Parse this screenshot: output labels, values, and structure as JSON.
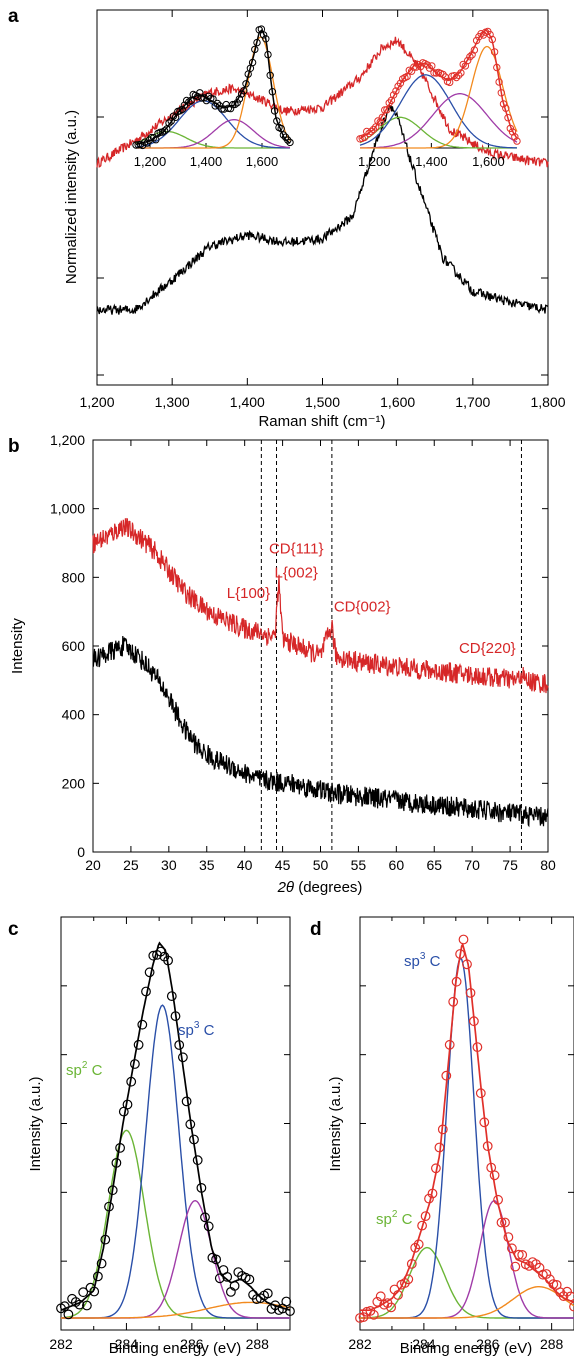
{
  "panels": {
    "a": {
      "letter": "a",
      "chart_data": {
        "type": "line",
        "xlabel": "Raman shift (cm⁻¹)",
        "ylabel": "Normalized intensity (a.u.)",
        "xlim": [
          1200,
          1800
        ],
        "xticks": [
          "1,200",
          "1,300",
          "1,400",
          "1,500",
          "1,600",
          "1,700",
          "1,800"
        ],
        "series": [
          {
            "color": "#d62728",
            "x": [
              1200,
              1250,
              1300,
              1350,
              1380,
              1420,
              1450,
              1500,
              1550,
              1580,
              1600,
              1630,
              1670,
              1720,
              1770,
              1800
            ],
            "y": [
              0.59,
              0.65,
              0.72,
              0.78,
              0.79,
              0.76,
              0.73,
              0.74,
              0.82,
              0.9,
              0.92,
              0.84,
              0.68,
              0.62,
              0.6,
              0.59
            ]
          },
          {
            "color": "#000000",
            "x": [
              1200,
              1250,
              1300,
              1350,
              1400,
              1450,
              1500,
              1540,
              1570,
              1590,
              1600,
              1620,
              1660,
              1700,
              1750,
              1800
            ],
            "y": [
              0.2,
              0.2,
              0.28,
              0.37,
              0.4,
              0.38,
              0.39,
              0.45,
              0.64,
              0.75,
              0.71,
              0.58,
              0.34,
              0.25,
              0.22,
              0.2
            ]
          }
        ]
      },
      "insets": [
        {
          "xticks": [
            "1,200",
            "1,400",
            "1,600"
          ],
          "xlim": [
            1150,
            1700
          ],
          "data_color": "#000000",
          "data": {
            "x": [
              1150,
              1200,
              1250,
              1300,
              1350,
              1380,
              1420,
              1460,
              1500,
              1540,
              1570,
              1590,
              1600,
              1615,
              1630,
              1650,
              1680,
              1700
            ],
            "y": [
              0.03,
              0.06,
              0.14,
              0.3,
              0.43,
              0.45,
              0.4,
              0.34,
              0.36,
              0.52,
              0.78,
              0.98,
              1.0,
              0.92,
              0.6,
              0.25,
              0.08,
              0.04
            ]
          },
          "fit_color": "#000000",
          "components": [
            {
              "color": "#6bb536",
              "center": 1260,
              "width": 70,
              "height": 0.14
            },
            {
              "color": "#2a4fa8",
              "center": 1390,
              "width": 85,
              "height": 0.4
            },
            {
              "color": "#a03ca8",
              "center": 1500,
              "width": 70,
              "height": 0.24
            },
            {
              "color": "#f28a1e",
              "center": 1595,
              "width": 45,
              "height": 0.94
            }
          ]
        },
        {
          "xticks": [
            "1,200",
            "1,400",
            "1,600"
          ],
          "xlim": [
            1150,
            1700
          ],
          "data_color": "#e0302a",
          "data": {
            "x": [
              1150,
              1200,
              1250,
              1300,
              1340,
              1380,
              1420,
              1460,
              1500,
              1540,
              1570,
              1590,
              1600,
              1615,
              1630,
              1650,
              1680,
              1700
            ],
            "y": [
              0.08,
              0.16,
              0.36,
              0.58,
              0.7,
              0.72,
              0.63,
              0.57,
              0.64,
              0.8,
              0.95,
              1.0,
              0.98,
              0.9,
              0.68,
              0.4,
              0.16,
              0.08
            ]
          },
          "fit_color": "#e0302a",
          "components": [
            {
              "color": "#6bb536",
              "center": 1290,
              "width": 75,
              "height": 0.26
            },
            {
              "color": "#2a4fa8",
              "center": 1380,
              "width": 90,
              "height": 0.62
            },
            {
              "color": "#a03ca8",
              "center": 1500,
              "width": 95,
              "height": 0.46
            },
            {
              "color": "#f28a1e",
              "center": 1595,
              "width": 55,
              "height": 0.86
            }
          ]
        }
      ]
    },
    "b": {
      "letter": "b",
      "chart_data": {
        "type": "line",
        "xlabel": "2θ (degrees)",
        "ylabel": "Intensity",
        "xlim": [
          20,
          80
        ],
        "ylim": [
          0,
          1200
        ],
        "xticks": [
          "20",
          "25",
          "30",
          "35",
          "40",
          "45",
          "50",
          "55",
          "60",
          "65",
          "70",
          "75",
          "80"
        ],
        "yticks": [
          "0",
          "200",
          "400",
          "600",
          "800",
          "1,000",
          "1,200"
        ],
        "series": [
          {
            "color": "#d62728",
            "x": [
              20,
              22,
              24,
              26,
              28,
              30,
              32,
              34,
              36,
              38,
              40,
              42,
              43,
              44,
              44.5,
              45,
              46,
              48,
              50,
              51.5,
              52,
              54,
              56,
              58,
              60,
              62,
              64,
              66,
              68,
              70,
              72,
              74,
              76,
              76.5,
              77,
              78,
              80
            ],
            "y": [
              900,
              920,
              950,
              920,
              880,
              820,
              760,
              720,
              690,
              670,
              650,
              640,
              630,
              630,
              790,
              620,
              610,
              590,
              570,
              660,
              570,
              560,
              550,
              545,
              540,
              535,
              530,
              525,
              520,
              515,
              510,
              505,
              500,
              520,
              500,
              495,
              490
            ]
          },
          {
            "color": "#000000",
            "x": [
              20,
              22,
              24,
              26,
              28,
              30,
              32,
              34,
              36,
              38,
              40,
              42,
              44,
              46,
              48,
              50,
              52,
              54,
              56,
              58,
              60,
              62,
              64,
              66,
              68,
              70,
              72,
              74,
              76,
              78,
              80
            ],
            "y": [
              560,
              580,
              600,
              570,
              520,
              450,
              360,
              300,
              270,
              250,
              230,
              210,
              205,
              200,
              190,
              180,
              170,
              165,
              160,
              155,
              150,
              145,
              140,
              135,
              130,
              125,
              120,
              115,
              110,
              105,
              100
            ]
          }
        ],
        "reference_lines": [
          42.2,
          44.2,
          51.5,
          76.5
        ],
        "annotations": [
          {
            "label": "L{100}",
            "x": 40.5,
            "y": 740
          },
          {
            "label": "CD{111}",
            "x": 46.8,
            "y": 870
          },
          {
            "label": "L{002}",
            "x": 46.8,
            "y": 800
          },
          {
            "label": "CD{002}",
            "x": 55.5,
            "y": 700
          },
          {
            "label": "CD{220}",
            "x": 72,
            "y": 580
          }
        ]
      }
    },
    "c": {
      "letter": "c",
      "chart_data": {
        "type": "line",
        "xlabel": "Binding energy (eV)",
        "ylabel": "Intensity (a.u.)",
        "xlim": [
          282,
          289
        ],
        "xticks": [
          "282",
          "284",
          "286",
          "288"
        ],
        "data_color": "#000000",
        "fit_color": "#000000",
        "data": {
          "x": [
            282,
            282.3,
            282.6,
            283,
            283.3,
            283.6,
            283.9,
            284.2,
            284.5,
            284.8,
            285,
            285.2,
            285.4,
            285.7,
            286,
            286.3,
            286.6,
            286.9,
            287.2,
            287.5,
            287.8,
            288,
            288.3,
            288.6,
            289
          ],
          "y": [
            0.02,
            0.03,
            0.04,
            0.07,
            0.18,
            0.34,
            0.5,
            0.64,
            0.78,
            0.9,
            0.96,
            0.94,
            0.84,
            0.66,
            0.48,
            0.32,
            0.18,
            0.11,
            0.09,
            0.1,
            0.08,
            0.06,
            0.04,
            0.03,
            0.02
          ]
        },
        "components": [
          {
            "color": "#6bb536",
            "center": 284.0,
            "width": 0.55,
            "height": 0.48
          },
          {
            "color": "#2a4fa8",
            "center": 285.1,
            "width": 0.5,
            "height": 0.8
          },
          {
            "color": "#a03ca8",
            "center": 286.1,
            "width": 0.5,
            "height": 0.3
          },
          {
            "color": "#f28a1e",
            "center": 287.8,
            "width": 1.3,
            "height": 0.04
          }
        ],
        "peak_labels": [
          {
            "main": "sp",
            "sup": "2",
            "tail": " C",
            "color": "#6bb536"
          },
          {
            "main": "sp",
            "sup": "3",
            "tail": " C",
            "color": "#2a4fa8"
          }
        ]
      }
    },
    "d": {
      "letter": "d",
      "chart_data": {
        "type": "line",
        "xlabel": "Binding energy (eV)",
        "ylabel": "Intensity (a.u.)",
        "xlim": [
          282,
          288.7
        ],
        "xticks": [
          "282",
          "284",
          "286",
          "288"
        ],
        "data_color": "#e0302a",
        "fit_color": "#e0302a",
        "data": {
          "x": [
            282,
            282.3,
            282.6,
            283,
            283.3,
            283.6,
            283.9,
            284.2,
            284.5,
            284.8,
            285,
            285.2,
            285.4,
            285.6,
            285.8,
            286,
            286.3,
            286.6,
            286.9,
            287.2,
            287.5,
            287.8,
            288.1,
            288.4,
            288.7
          ],
          "y": [
            0.02,
            0.02,
            0.03,
            0.05,
            0.08,
            0.14,
            0.22,
            0.3,
            0.42,
            0.68,
            0.86,
            0.96,
            0.9,
            0.74,
            0.58,
            0.44,
            0.3,
            0.2,
            0.15,
            0.14,
            0.12,
            0.1,
            0.07,
            0.05,
            0.04
          ]
        },
        "components": [
          {
            "color": "#6bb536",
            "center": 284.1,
            "width": 0.55,
            "height": 0.18
          },
          {
            "color": "#2a4fa8",
            "center": 285.15,
            "width": 0.42,
            "height": 0.92
          },
          {
            "color": "#a03ca8",
            "center": 286.2,
            "width": 0.45,
            "height": 0.3
          },
          {
            "color": "#f28a1e",
            "center": 287.6,
            "width": 0.8,
            "height": 0.08
          }
        ],
        "peak_labels": [
          {
            "main": "sp",
            "sup": "2",
            "tail": " C",
            "color": "#6bb536"
          },
          {
            "main": "sp",
            "sup": "3",
            "tail": " C",
            "color": "#2a4fa8"
          }
        ]
      }
    }
  }
}
